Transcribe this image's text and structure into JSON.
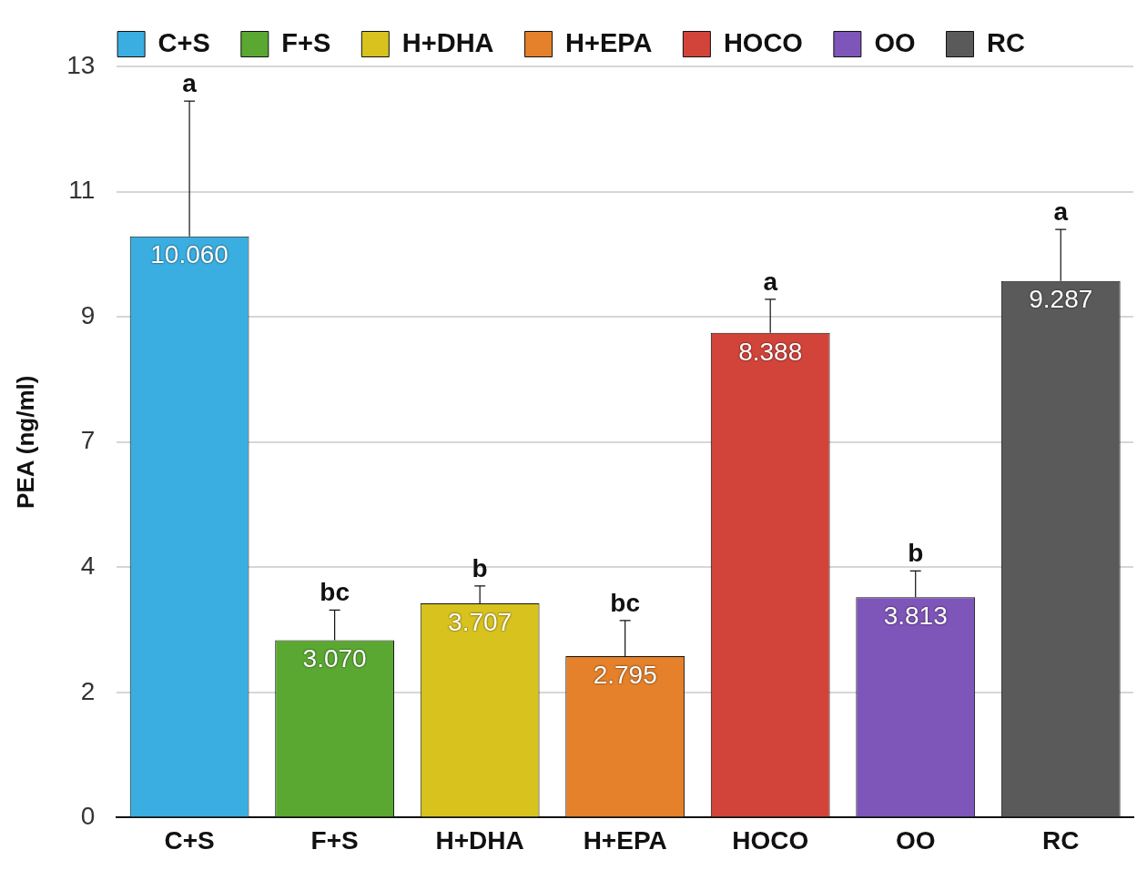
{
  "chart_data": {
    "type": "bar",
    "ylabel": "PEA (ng/ml)",
    "categories": [
      "C+S",
      "F+S",
      "H+DHA",
      "H+EPA",
      "HOCO",
      "OO",
      "RC"
    ],
    "series": [
      {
        "name": "C+S",
        "color": "#3aaee0",
        "values": [
          10.06,
          null,
          null,
          null,
          null,
          null,
          null
        ],
        "errors": [
          [
            10.06,
            12.4
          ],
          null,
          null,
          null,
          null,
          null,
          null
        ],
        "value_labels": [
          "10.060",
          null,
          null,
          null,
          null,
          null,
          null
        ]
      },
      {
        "name": "F+S",
        "color": "#5aa832",
        "values": [
          null,
          3.07,
          null,
          null,
          null,
          null,
          null
        ],
        "errors": [
          null,
          [
            3.07,
            3.59
          ],
          null,
          null,
          null,
          null,
          null
        ],
        "value_labels": [
          null,
          "3.070",
          null,
          null,
          null,
          null,
          null
        ]
      },
      {
        "name": "H+DHA",
        "color": "#d8c21e",
        "values": [
          null,
          null,
          3.707,
          null,
          null,
          null,
          null
        ],
        "errors": [
          null,
          null,
          [
            3.707,
            4.01
          ],
          null,
          null,
          null,
          null
        ],
        "value_labels": [
          null,
          null,
          "3.707",
          null,
          null,
          null,
          null
        ]
      },
      {
        "name": "H+EPA",
        "color": "#e4812a",
        "values": [
          null,
          null,
          null,
          2.795,
          null,
          null,
          null
        ],
        "errors": [
          null,
          null,
          null,
          [
            2.795,
            3.41
          ],
          null,
          null,
          null
        ],
        "value_labels": [
          null,
          null,
          null,
          "2.795",
          null,
          null,
          null
        ]
      },
      {
        "name": "HOCO",
        "color": "#d2443a",
        "values": [
          null,
          null,
          null,
          null,
          8.388,
          null,
          null
        ],
        "errors": [
          null,
          null,
          null,
          null,
          [
            8.388,
            8.97
          ],
          null,
          null
        ],
        "value_labels": [
          null,
          null,
          null,
          null,
          "8.388",
          null,
          null
        ]
      },
      {
        "name": "OO",
        "color": "#7e55b8",
        "values": [
          null,
          null,
          null,
          null,
          null,
          3.813,
          null
        ],
        "errors": [
          null,
          null,
          null,
          null,
          null,
          [
            3.813,
            4.27
          ],
          null
        ],
        "value_labels": [
          null,
          null,
          null,
          null,
          null,
          "3.813",
          null
        ]
      },
      {
        "name": "RC",
        "color": "#5a5a5a",
        "values": [
          null,
          null,
          null,
          null,
          null,
          null,
          9.287
        ],
        "errors": [
          null,
          null,
          null,
          null,
          null,
          null,
          [
            9.287,
            10.18
          ]
        ],
        "value_labels": [
          null,
          null,
          null,
          null,
          null,
          null,
          "9.287"
        ]
      }
    ],
    "ylim": [
      0,
      13
    ],
    "yticks": [
      0,
      {
        "value": 2.167,
        "label": "2"
      },
      {
        "value": 4.333,
        "label": "4"
      },
      {
        "value": 6.5,
        "label": "7"
      },
      {
        "value": 8.667,
        "label": "9"
      },
      {
        "value": 10.833,
        "label": "11"
      },
      13
    ],
    "annotations": [
      {
        "text": "a",
        "x": "C+S",
        "y": 12.4
      },
      {
        "text": "bc",
        "x": "F+S",
        "y": 3.59
      },
      {
        "text": "b",
        "x": "H+DHA",
        "y": 4.01
      },
      {
        "text": "bc",
        "x": "H+EPA",
        "y": 3.41
      },
      {
        "text": "a",
        "x": "HOCO",
        "y": 8.97
      },
      {
        "text": "b",
        "x": "OO",
        "y": 4.27
      },
      {
        "text": "a",
        "x": "RC",
        "y": 10.18
      }
    ],
    "grid": "y",
    "legend": "top"
  }
}
